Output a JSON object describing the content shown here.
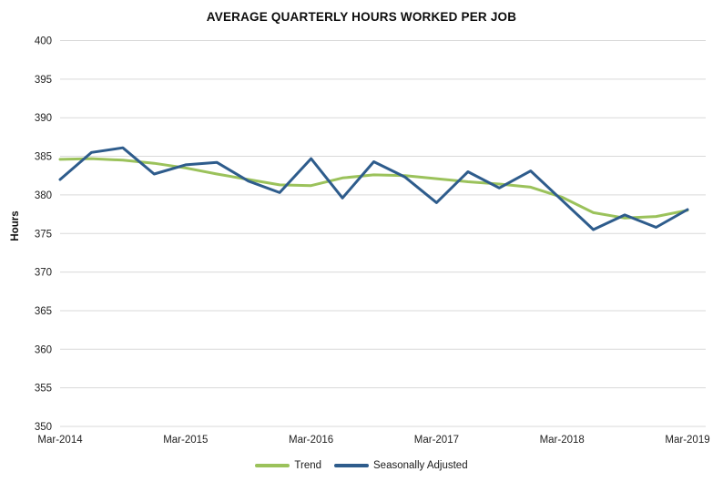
{
  "chart_data": {
    "type": "line",
    "title": "AVERAGE QUARTERLY HOURS WORKED PER JOB",
    "ylabel": "Hours",
    "xlabel": "",
    "ylim": [
      350,
      400
    ],
    "ytick_step": 5,
    "ytick_labels": [
      "350",
      "355",
      "360",
      "365",
      "370",
      "375",
      "380",
      "385",
      "390",
      "395",
      "400"
    ],
    "grid": "horizontal-only",
    "gridline_color": "#d9d9d9",
    "tick_label_color": "#1f1f1f",
    "legend_position": "bottom-center",
    "x": [
      "Mar-2014",
      "Jun-2014",
      "Sep-2014",
      "Dec-2014",
      "Mar-2015",
      "Jun-2015",
      "Sep-2015",
      "Dec-2015",
      "Mar-2016",
      "Jun-2016",
      "Sep-2016",
      "Dec-2016",
      "Mar-2017",
      "Jun-2017",
      "Sep-2017",
      "Dec-2017",
      "Mar-2018",
      "Jun-2018",
      "Sep-2018",
      "Dec-2018",
      "Mar-2019"
    ],
    "x_labels_shown": [
      "Mar-2014",
      "Mar-2015",
      "Mar-2016",
      "Mar-2017",
      "Mar-2018",
      "Mar-2019"
    ],
    "x_label_indices": [
      0,
      4,
      8,
      12,
      16,
      20
    ],
    "series": [
      {
        "name": "Trend",
        "color": "#9bc25b",
        "values": [
          384.6,
          384.7,
          384.5,
          384.1,
          383.5,
          382.7,
          382.0,
          381.3,
          381.2,
          382.2,
          382.6,
          382.5,
          382.1,
          381.7,
          381.4,
          381.0,
          379.7,
          377.7,
          377.0,
          377.2,
          378.0
        ]
      },
      {
        "name": "Seasonally Adjusted",
        "color": "#2e5c8c",
        "values": [
          382.0,
          385.5,
          386.1,
          382.7,
          383.9,
          384.2,
          381.8,
          380.3,
          384.7,
          379.6,
          384.3,
          382.3,
          379.0,
          383.0,
          380.9,
          383.1,
          379.3,
          375.5,
          377.4,
          375.8,
          378.1
        ]
      }
    ]
  }
}
